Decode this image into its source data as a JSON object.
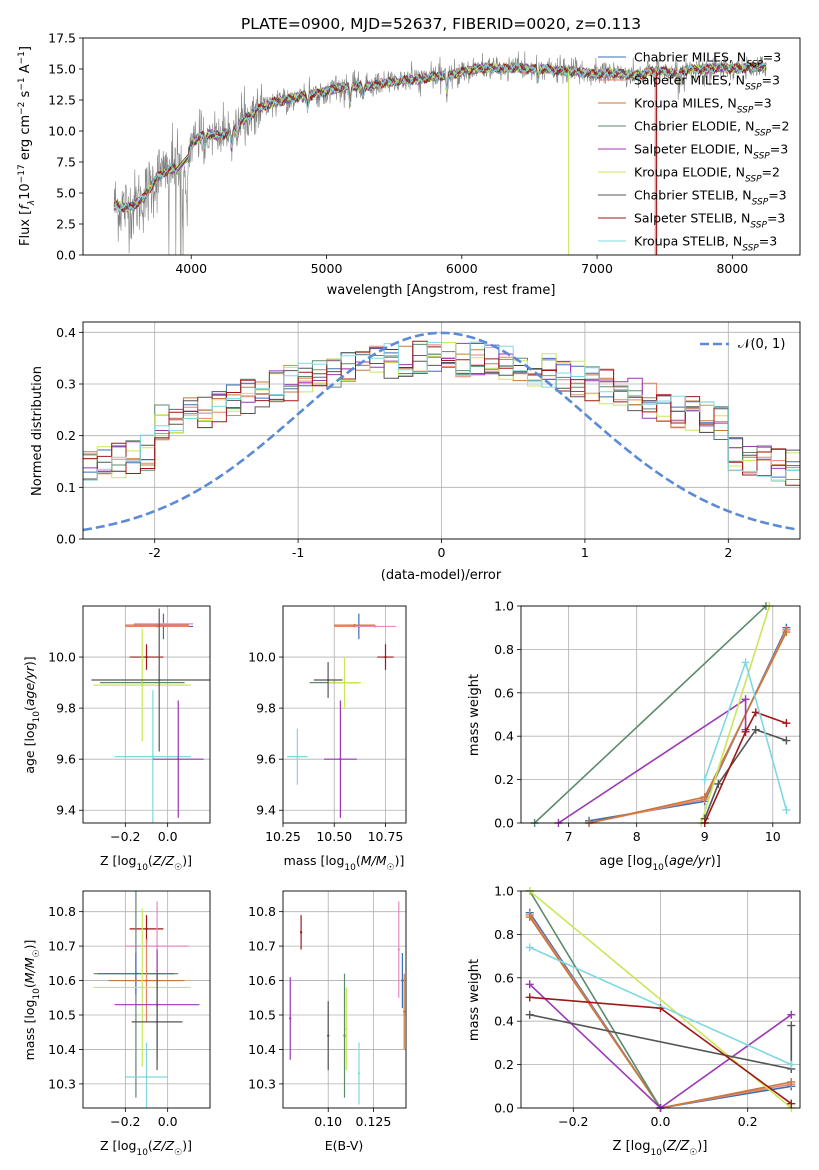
{
  "figure_title": "PLATE=0900, MJD=52637, FIBERID=0020, z=0.113",
  "colors": {
    "Chabrier MILES": "#3b6fb6",
    "Salpeter MILES": "#e8836b",
    "Kroupa MILES": "#c8783a",
    "Chabrier ELODIE": "#5b8b6b",
    "Salpeter ELODIE": "#9b37b5",
    "Kroupa ELODIE": "#c8e85a",
    "Chabrier STELIB": "#555555",
    "Salpeter STELIB": "#a01818",
    "Kroupa STELIB": "#7fd8e0",
    "pink": "#e48cc0",
    "gauss": "#5b8bd8",
    "data": "#808080"
  },
  "chart_data": [
    {
      "id": "spectrum",
      "type": "line",
      "title": "PLATE=0900, MJD=52637, FIBERID=0020, z=0.113",
      "xlabel": "wavelength [Angstrom, rest frame]",
      "ylabel": "Flux [f_λ10^-17 erg cm^-2 s^-1 A^-1]",
      "xlim": [
        3200,
        8500
      ],
      "ylim": [
        0,
        17.5
      ],
      "xticks": [
        4000,
        5000,
        6000,
        7000,
        8000
      ],
      "yticks": [
        0.0,
        2.5,
        5.0,
        7.5,
        10.0,
        12.5,
        15.0,
        17.5
      ],
      "grid": false,
      "legend_position": "top-right",
      "series": [
        {
          "name": "Chabrier MILES, N_SSP=3"
        },
        {
          "name": "Salpeter MILES, N_SSP=3"
        },
        {
          "name": "Kroupa MILES, N_SSP=3"
        },
        {
          "name": "Chabrier ELODIE, N_SSP=2"
        },
        {
          "name": "Salpeter ELODIE, N_SSP=3"
        },
        {
          "name": "Kroupa ELODIE, N_SSP=2"
        },
        {
          "name": "Chabrier STELIB, N_SSP=3"
        },
        {
          "name": "Salpeter STELIB, N_SSP=3"
        },
        {
          "name": "Kroupa STELIB, N_SSP=3"
        }
      ],
      "continuum": [
        [
          3430,
          4.0
        ],
        [
          3550,
          3.8
        ],
        [
          3650,
          4.6
        ],
        [
          3750,
          6.3
        ],
        [
          3850,
          7.0
        ],
        [
          3950,
          6.8
        ],
        [
          4000,
          9.0
        ],
        [
          4100,
          9.8
        ],
        [
          4200,
          9.6
        ],
        [
          4300,
          10.0
        ],
        [
          4400,
          11.0
        ],
        [
          4500,
          11.8
        ],
        [
          4600,
          12.3
        ],
        [
          4700,
          12.5
        ],
        [
          4800,
          12.8
        ],
        [
          4900,
          12.9
        ],
        [
          5000,
          13.2
        ],
        [
          5100,
          13.5
        ],
        [
          5200,
          13.6
        ],
        [
          5300,
          13.6
        ],
        [
          5400,
          13.8
        ],
        [
          5500,
          14.0
        ],
        [
          5600,
          14.1
        ],
        [
          5700,
          14.2
        ],
        [
          5800,
          14.4
        ],
        [
          5900,
          14.5
        ],
        [
          6000,
          14.8
        ],
        [
          6100,
          15.0
        ],
        [
          6200,
          15.1
        ],
        [
          6300,
          15.0
        ],
        [
          6400,
          15.1
        ],
        [
          6500,
          15.0
        ],
        [
          6600,
          15.0
        ],
        [
          6700,
          14.9
        ],
        [
          6800,
          14.8
        ],
        [
          6900,
          14.7
        ],
        [
          7000,
          14.6
        ],
        [
          7100,
          14.7
        ],
        [
          7200,
          14.6
        ],
        [
          7300,
          14.5
        ],
        [
          7400,
          14.8
        ],
        [
          7500,
          14.8
        ],
        [
          7600,
          14.7
        ],
        [
          7700,
          15.0
        ],
        [
          7800,
          15.0
        ],
        [
          7900,
          15.1
        ],
        [
          8000,
          15.0
        ],
        [
          8100,
          15.1
        ],
        [
          8250,
          15.2
        ]
      ]
    },
    {
      "id": "residuals",
      "type": "histogram",
      "xlabel": "(data-model)/error",
      "ylabel": "Normed distribution",
      "xlim": [
        -2.5,
        2.5
      ],
      "ylim": [
        0,
        0.42
      ],
      "xticks": [
        -2,
        -1,
        0,
        1,
        2
      ],
      "yticks": [
        0.0,
        0.1,
        0.2,
        0.3,
        0.4
      ],
      "grid": true,
      "legend_position": "top-right",
      "legend": "𝒩(0, 1)",
      "gaussian": {
        "mean": 0,
        "sigma": 1
      }
    },
    {
      "id": "age_vs_Z",
      "type": "scatter",
      "xlabel": "Z [log10(Z/Z☉)]",
      "ylabel": "age  [log10(age/yr)]",
      "xlim": [
        -0.4,
        0.2
      ],
      "ylim": [
        9.35,
        10.2
      ],
      "xticks": [
        -0.2,
        0.0
      ],
      "yticks": [
        9.4,
        9.6,
        9.8,
        10.0
      ],
      "grid": true,
      "points": [
        {
          "color": "Chabrier MILES",
          "x": -0.02,
          "y": 10.12,
          "xerr": 0.14,
          "yerr": 0.05
        },
        {
          "color": "Salpeter MILES",
          "x": -0.05,
          "y": 10.12,
          "xerr": 0.15,
          "yerr": 0.0
        },
        {
          "color": "Kroupa MILES",
          "x": -0.05,
          "y": 10.125,
          "xerr": 0.15,
          "yerr": 0.0
        },
        {
          "color": "pink",
          "x": -0.02,
          "y": 10.13,
          "xerr": 0.14,
          "yerr": 0.0
        },
        {
          "color": "Salpeter STELIB",
          "x": -0.1,
          "y": 10.0,
          "xerr": 0.08,
          "yerr": 0.05
        },
        {
          "color": "Chabrier ELODIE",
          "x": -0.12,
          "y": 9.9,
          "xerr": 0.2,
          "yerr": 0.0
        },
        {
          "color": "Kroupa ELODIE",
          "x": -0.12,
          "y": 9.89,
          "xerr": 0.23,
          "yerr": 0.22
        },
        {
          "color": "Chabrier STELIB",
          "x": -0.04,
          "y": 9.91,
          "xerr": 0.32,
          "yerr": 0.28
        },
        {
          "color": "Kroupa STELIB",
          "x": -0.07,
          "y": 9.61,
          "xerr": 0.18,
          "yerr": 0.26
        },
        {
          "color": "Salpeter ELODIE",
          "x": 0.05,
          "y": 9.6,
          "xerr": 0.12,
          "yerr": 0.23
        }
      ]
    },
    {
      "id": "age_vs_mass",
      "type": "scatter",
      "xlabel": "mass [log10(M/M☉)]",
      "xlim": [
        10.25,
        10.85
      ],
      "ylim": [
        9.35,
        10.2
      ],
      "xticks": [
        10.25,
        10.5,
        10.75
      ],
      "yticks": [
        9.4,
        9.6,
        9.8,
        10.0
      ],
      "grid": true,
      "points": [
        {
          "color": "Chabrier MILES",
          "x": 10.62,
          "y": 10.12,
          "xerr": 0.06,
          "yerr": 0.05
        },
        {
          "color": "Salpeter MILES",
          "x": 10.6,
          "y": 10.12,
          "xerr": 0.1,
          "yerr": 0.0
        },
        {
          "color": "Kroupa MILES",
          "x": 10.6,
          "y": 10.125,
          "xerr": 0.1,
          "yerr": 0.0
        },
        {
          "color": "pink",
          "x": 10.7,
          "y": 10.12,
          "xerr": 0.1,
          "yerr": 0.0
        },
        {
          "color": "Salpeter STELIB",
          "x": 10.75,
          "y": 10.0,
          "xerr": 0.04,
          "yerr": 0.05
        },
        {
          "color": "Chabrier ELODIE",
          "x": 10.5,
          "y": 9.9,
          "xerr": 0.12,
          "yerr": 0.0
        },
        {
          "color": "Kroupa ELODIE",
          "x": 10.55,
          "y": 9.9,
          "xerr": 0.08,
          "yerr": 0.1
        },
        {
          "color": "Chabrier STELIB",
          "x": 10.47,
          "y": 9.91,
          "xerr": 0.07,
          "yerr": 0.07
        },
        {
          "color": "Kroupa STELIB",
          "x": 10.32,
          "y": 9.61,
          "xerr": 0.05,
          "yerr": 0.11
        },
        {
          "color": "Salpeter ELODIE",
          "x": 10.53,
          "y": 9.6,
          "xerr": 0.08,
          "yerr": 0.23
        }
      ]
    },
    {
      "id": "weight_vs_age",
      "type": "line",
      "xlabel": "age  [log10(age/yr)]",
      "ylabel": "mass weight",
      "xlim": [
        6.3,
        10.4
      ],
      "ylim": [
        0,
        1.0
      ],
      "xticks": [
        7,
        8,
        9,
        10
      ],
      "yticks": [
        0.0,
        0.2,
        0.4,
        0.6,
        0.8,
        1.0
      ],
      "grid": true,
      "series": [
        {
          "color": "Chabrier MILES",
          "x": [
            7.3,
            9.0,
            10.2
          ],
          "y": [
            0.01,
            0.1,
            0.9
          ]
        },
        {
          "color": "Salpeter MILES",
          "x": [
            7.3,
            9.0,
            10.2
          ],
          "y": [
            0.0,
            0.11,
            0.89
          ]
        },
        {
          "color": "Kroupa MILES",
          "x": [
            7.3,
            9.0,
            10.2
          ],
          "y": [
            0.0,
            0.12,
            0.88
          ]
        },
        {
          "color": "Chabrier ELODIE",
          "x": [
            6.5,
            9.9
          ],
          "y": [
            0.0,
            1.0
          ]
        },
        {
          "color": "Salpeter ELODIE",
          "x": [
            6.85,
            9.6,
            9.6
          ],
          "y": [
            0.0,
            0.57,
            0.43
          ]
        },
        {
          "color": "Kroupa ELODIE",
          "x": [
            8.95,
            9.95
          ],
          "y": [
            0.0,
            1.0
          ]
        },
        {
          "color": "Chabrier STELIB",
          "x": [
            9.0,
            9.2,
            9.75,
            10.2
          ],
          "y": [
            0.02,
            0.18,
            0.43,
            0.38
          ]
        },
        {
          "color": "Salpeter STELIB",
          "x": [
            9.0,
            9.6,
            9.75,
            10.2
          ],
          "y": [
            0.0,
            0.42,
            0.51,
            0.46
          ]
        },
        {
          "color": "Kroupa STELIB",
          "x": [
            9.0,
            9.6,
            10.2
          ],
          "y": [
            0.2,
            0.74,
            0.06
          ]
        }
      ]
    },
    {
      "id": "mass_vs_Z",
      "type": "scatter",
      "xlabel": "Z [log10(Z/Z☉)]",
      "ylabel": "mass [log10(M/M☉)]",
      "xlim": [
        -0.4,
        0.2
      ],
      "ylim": [
        10.23,
        10.86
      ],
      "xticks": [
        -0.2,
        0.0
      ],
      "yticks": [
        10.3,
        10.4,
        10.5,
        10.6,
        10.7,
        10.8
      ],
      "grid": true,
      "points": [
        {
          "color": "Salpeter STELIB",
          "x": -0.1,
          "y": 10.75,
          "xerr": 0.08,
          "yerr": 0.04
        },
        {
          "color": "pink",
          "x": -0.05,
          "y": 10.7,
          "xerr": 0.15,
          "yerr": 0.13
        },
        {
          "color": "Chabrier ELODIE",
          "x": -0.15,
          "y": 10.62,
          "xerr": 0.2,
          "yerr": 0.36
        },
        {
          "color": "Chabrier MILES",
          "x": -0.15,
          "y": 10.62,
          "xerr": 0.18,
          "yerr": 0.06
        },
        {
          "color": "Salpeter MILES",
          "x": -0.1,
          "y": 10.6,
          "xerr": 0.13,
          "yerr": 0.12
        },
        {
          "color": "Kroupa MILES",
          "x": -0.1,
          "y": 10.6,
          "xerr": 0.18,
          "yerr": 0.0
        },
        {
          "color": "Kroupa ELODIE",
          "x": -0.12,
          "y": 10.58,
          "xerr": 0.23,
          "yerr": 0.23
        },
        {
          "color": "Salpeter ELODIE",
          "x": -0.05,
          "y": 10.53,
          "xerr": 0.2,
          "yerr": 0.16
        },
        {
          "color": "Chabrier STELIB",
          "x": -0.05,
          "y": 10.48,
          "xerr": 0.12,
          "yerr": 0.14
        },
        {
          "color": "Kroupa STELIB",
          "x": -0.1,
          "y": 10.32,
          "xerr": 0.1,
          "yerr": 0.1
        }
      ]
    },
    {
      "id": "mass_vs_ebv",
      "type": "scatter",
      "xlabel": "E(B-V)",
      "xlim": [
        0.075,
        0.143
      ],
      "ylim": [
        10.23,
        10.86
      ],
      "xticks": [
        0.1,
        0.125
      ],
      "yticks": [
        10.3,
        10.4,
        10.5,
        10.6,
        10.7,
        10.8
      ],
      "grid": true,
      "points": [
        {
          "color": "Salpeter STELIB",
          "x": 0.085,
          "y": 10.74,
          "xerr": 0.0,
          "yerr": 0.05
        },
        {
          "color": "Salpeter ELODIE",
          "x": 0.079,
          "y": 10.49,
          "xerr": 0.0,
          "yerr": 0.12
        },
        {
          "color": "Chabrier STELIB",
          "x": 0.1,
          "y": 10.44,
          "xerr": 0.0,
          "yerr": 0.1
        },
        {
          "color": "Chabrier ELODIE",
          "x": 0.109,
          "y": 10.44,
          "xerr": 0.0,
          "yerr": 0.18
        },
        {
          "color": "Kroupa ELODIE",
          "x": 0.11,
          "y": 10.46,
          "xerr": 0.0,
          "yerr": 0.12
        },
        {
          "color": "Kroupa STELIB",
          "x": 0.117,
          "y": 10.33,
          "xerr": 0.0,
          "yerr": 0.09
        },
        {
          "color": "pink",
          "x": 0.139,
          "y": 10.69,
          "xerr": 0.0,
          "yerr": 0.14
        },
        {
          "color": "Chabrier MILES",
          "x": 0.141,
          "y": 10.6,
          "xerr": 0.0,
          "yerr": 0.08
        },
        {
          "color": "Kroupa MILES",
          "x": 0.142,
          "y": 10.51,
          "xerr": 0.0,
          "yerr": 0.11
        }
      ]
    },
    {
      "id": "weight_vs_Z",
      "type": "line",
      "xlabel": "Z [log10(Z/Z☉)]",
      "ylabel": "mass weight",
      "xlim": [
        -0.32,
        0.32
      ],
      "ylim": [
        0,
        1.0
      ],
      "xticks": [
        -0.2,
        0.0,
        0.2
      ],
      "yticks": [
        0.0,
        0.2,
        0.4,
        0.6,
        0.8,
        1.0
      ],
      "grid": true,
      "series": [
        {
          "color": "Chabrier MILES",
          "x": [
            -0.3,
            0.0,
            0.3
          ],
          "y": [
            0.9,
            0.0,
            0.1
          ]
        },
        {
          "color": "Salpeter MILES",
          "x": [
            -0.3,
            0.0,
            0.3
          ],
          "y": [
            0.89,
            0.0,
            0.11
          ]
        },
        {
          "color": "Kroupa MILES",
          "x": [
            -0.3,
            0.0,
            0.3
          ],
          "y": [
            0.88,
            0.0,
            0.12
          ]
        },
        {
          "color": "Chabrier ELODIE",
          "x": [
            -0.3,
            0.0
          ],
          "y": [
            1.0,
            0.0
          ]
        },
        {
          "color": "Salpeter ELODIE",
          "x": [
            -0.3,
            0.0,
            0.3
          ],
          "y": [
            0.57,
            0.0,
            0.43
          ]
        },
        {
          "color": "Kroupa ELODIE",
          "x": [
            -0.3,
            0.3
          ],
          "y": [
            1.0,
            0.0
          ]
        },
        {
          "color": "Chabrier STELIB",
          "x": [
            -0.3,
            0.3,
            0.3
          ],
          "y": [
            0.43,
            0.18,
            0.38
          ]
        },
        {
          "color": "Salpeter STELIB",
          "x": [
            -0.3,
            0.0,
            0.3
          ],
          "y": [
            0.51,
            0.46,
            0.02
          ]
        },
        {
          "color": "Kroupa STELIB",
          "x": [
            -0.3,
            0.3
          ],
          "y": [
            0.74,
            0.2
          ]
        }
      ]
    }
  ]
}
